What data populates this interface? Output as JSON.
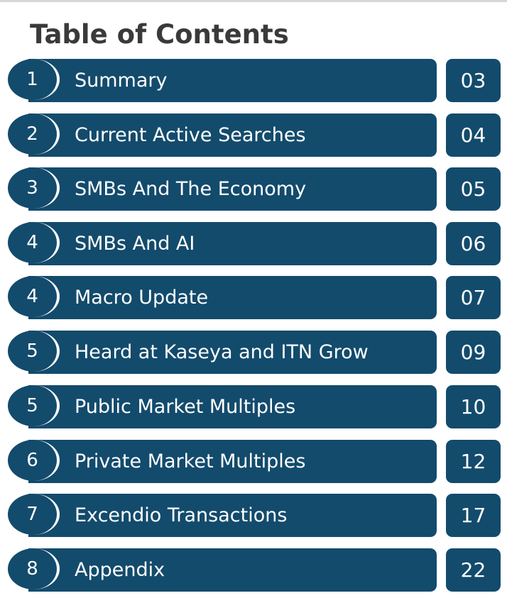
{
  "title": "Table of Contents",
  "colors": {
    "bar": "#134b6c",
    "text": "#ffffff",
    "title": "#3a3a3a"
  },
  "entries": [
    {
      "number": "1",
      "label": "Summary",
      "page": "03"
    },
    {
      "number": "2",
      "label": "Current Active Searches",
      "page": "04"
    },
    {
      "number": "3",
      "label": "SMBs And The Economy",
      "page": "05"
    },
    {
      "number": "4",
      "label": "SMBs And AI",
      "page": "06"
    },
    {
      "number": "4",
      "label": "Macro Update",
      "page": "07"
    },
    {
      "number": "5",
      "label": "Heard at Kaseya and ITN Grow",
      "page": "09"
    },
    {
      "number": "5",
      "label": "Public Market Multiples",
      "page": "10"
    },
    {
      "number": "6",
      "label": "Private Market Multiples",
      "page": "12"
    },
    {
      "number": "7",
      "label": "Excendio Transactions",
      "page": "17"
    },
    {
      "number": "8",
      "label": "Appendix",
      "page": "22"
    }
  ]
}
